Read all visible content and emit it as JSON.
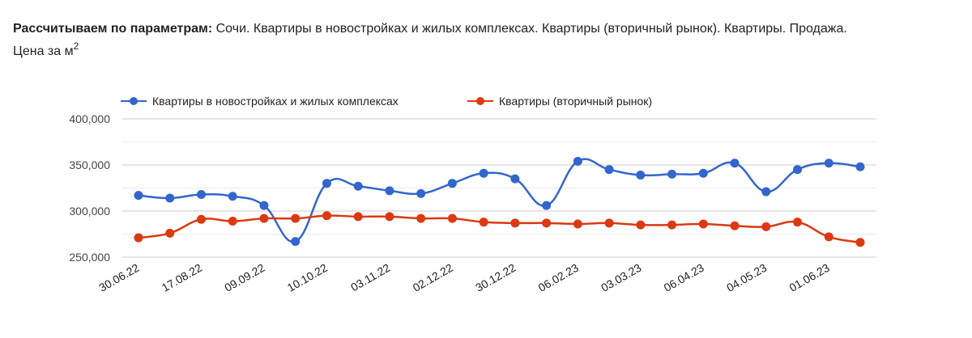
{
  "header": {
    "label": "Рассчитываем по параметрам:",
    "params": "Сочи. Квартиры в новостройках и жилых комплексах. Квартиры (вторичный рынок). Квартиры. Продажа.",
    "metric": "Цена за м",
    "metric_sup": "2"
  },
  "colors": {
    "series_new": "#3366cc",
    "series_secondary": "#dc3912",
    "grid_major": "#cccccc",
    "grid_minor": "#ebebeb"
  },
  "chart_data": {
    "type": "line",
    "title": "",
    "xlabel": "",
    "ylabel": "",
    "ylim": [
      250000,
      400000
    ],
    "y_ticks": [
      "400,000",
      "350,000",
      "300,000",
      "250,000"
    ],
    "y_tick_values": [
      400000,
      350000,
      300000,
      250000
    ],
    "grid": true,
    "legend_position": "top",
    "x_tick_labels": [
      "30.06.22",
      "17.08.22",
      "09.09.22",
      "10.10.22",
      "03.11.22",
      "02.12.22",
      "30.12.22",
      "06.02.23",
      "03.03.23",
      "06.04.23",
      "04.05.23",
      "01.06.23"
    ],
    "point_count": 24,
    "series": [
      {
        "name": "Квартиры в новостройках и жилых комплексах",
        "color": "#3366cc",
        "values": [
          317000,
          314000,
          318000,
          316000,
          306000,
          267000,
          330000,
          327000,
          322000,
          319000,
          330000,
          341000,
          335000,
          306000,
          354000,
          345000,
          339000,
          340000,
          341000,
          352000,
          321000,
          345000,
          352000,
          348000
        ]
      },
      {
        "name": "Квартиры (вторичный рынок)",
        "color": "#dc3912",
        "values": [
          271000,
          276000,
          291000,
          289000,
          292000,
          292000,
          295000,
          294000,
          294000,
          292000,
          292000,
          288000,
          287000,
          287000,
          286000,
          287000,
          285000,
          285000,
          286000,
          284000,
          283000,
          288000,
          272000,
          266000
        ]
      }
    ]
  }
}
